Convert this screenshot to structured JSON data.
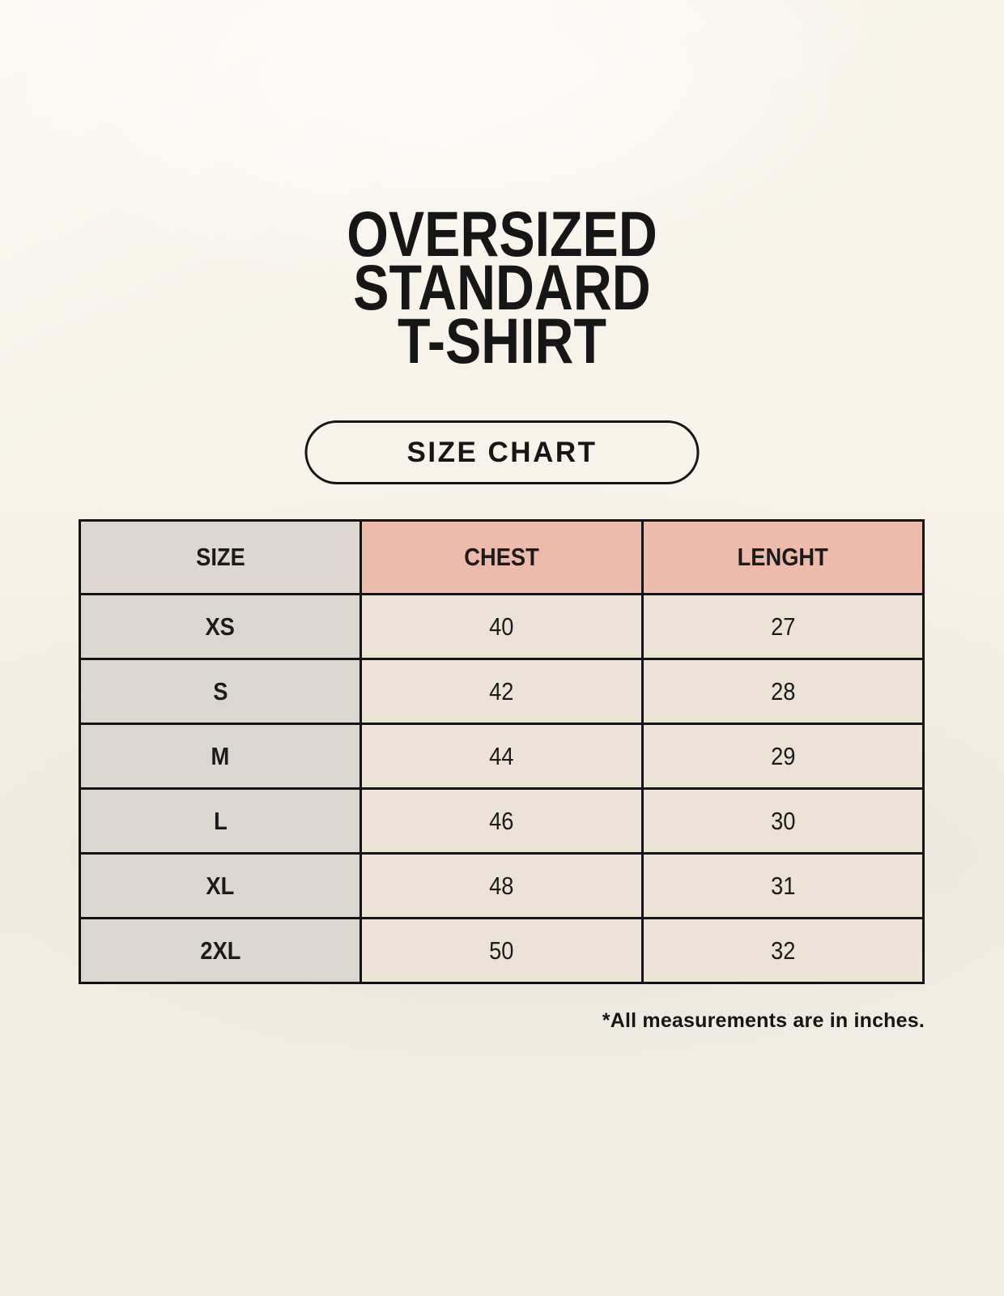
{
  "page": {
    "title_lines": [
      "OVERSIZED",
      "STANDARD",
      "T-SHIRT"
    ],
    "size_chart_label": "SIZE CHART",
    "footnote": "*All measurements are in inches."
  },
  "table": {
    "headers": [
      "SIZE",
      "CHEST",
      "LENGHT"
    ],
    "rows": [
      [
        "XS",
        "40",
        "27"
      ],
      [
        "S",
        "42",
        "28"
      ],
      [
        "M",
        "44",
        "29"
      ],
      [
        "L",
        "46",
        "30"
      ],
      [
        "XL",
        "48",
        "31"
      ],
      [
        "2XL",
        "50",
        "32"
      ]
    ]
  },
  "colors": {
    "background": "#f7f3ea",
    "table_border": "#141414",
    "header_size_bg": "#ded7d2",
    "header_measure_bg": "#edbbab",
    "size_col_bg": "#dcd6d1",
    "value_cell_bg": "#eae3d6",
    "text": "#1b1b1b"
  },
  "chart_data": {
    "type": "table",
    "title": "OVERSIZED STANDARD T-SHIRT — SIZE CHART",
    "columns": [
      "SIZE",
      "CHEST",
      "LENGHT"
    ],
    "rows": [
      [
        "XS",
        40,
        27
      ],
      [
        "S",
        42,
        28
      ],
      [
        "M",
        44,
        29
      ],
      [
        "L",
        46,
        30
      ],
      [
        "XL",
        48,
        31
      ],
      [
        "2XL",
        50,
        32
      ]
    ],
    "units_note": "*All measurements are in inches."
  }
}
